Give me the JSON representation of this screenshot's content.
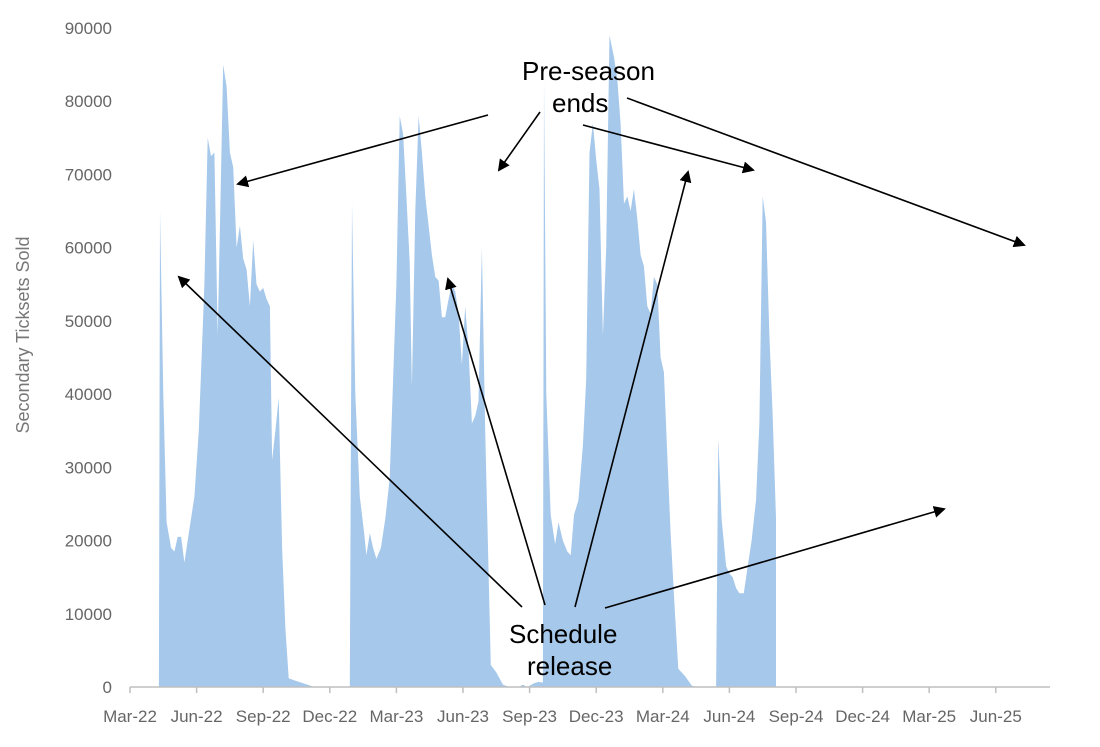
{
  "chart_data": {
    "type": "area",
    "title": "",
    "xlabel": "",
    "ylabel": "Secondary Ticksets Sold",
    "ylim": [
      0,
      90000
    ],
    "yticks": [
      0,
      10000,
      20000,
      30000,
      40000,
      50000,
      60000,
      70000,
      80000,
      90000
    ],
    "xlim": [
      0,
      40.2
    ],
    "xticks": [
      {
        "label": "Mar-22",
        "x": 0
      },
      {
        "label": "Jun-22",
        "x": 3
      },
      {
        "label": "Sep-22",
        "x": 6
      },
      {
        "label": "Dec-22",
        "x": 9
      },
      {
        "label": "Mar-23",
        "x": 12
      },
      {
        "label": "Jun-23",
        "x": 15
      },
      {
        "label": "Sep-23",
        "x": 18
      },
      {
        "label": "Dec-23",
        "x": 21
      },
      {
        "label": "Mar-24",
        "x": 24
      },
      {
        "label": "Jun-24",
        "x": 27
      },
      {
        "label": "Sep-24",
        "x": 30
      },
      {
        "label": "Dec-24",
        "x": 33
      },
      {
        "label": "Mar-25",
        "x": 36
      },
      {
        "label": "Jun-25",
        "x": 39
      }
    ],
    "series": [
      {
        "color": "#a6c8eb",
        "points": [
          [
            0,
            0
          ],
          [
            1.3,
            0
          ],
          [
            1.35,
            65000
          ],
          [
            1.5,
            40000
          ],
          [
            1.65,
            22500
          ],
          [
            1.85,
            19000
          ],
          [
            2.0,
            18500
          ],
          [
            2.15,
            20500
          ],
          [
            2.3,
            20500
          ],
          [
            2.45,
            17000
          ],
          [
            2.65,
            21000
          ],
          [
            2.9,
            26000
          ],
          [
            3.1,
            35000
          ],
          [
            3.35,
            55000
          ],
          [
            3.5,
            75000
          ],
          [
            3.65,
            72500
          ],
          [
            3.8,
            73000
          ],
          [
            3.95,
            48000
          ],
          [
            4.1,
            70000
          ],
          [
            4.2,
            85000
          ],
          [
            4.35,
            82000
          ],
          [
            4.5,
            73000
          ],
          [
            4.65,
            71000
          ],
          [
            4.8,
            60000
          ],
          [
            4.95,
            63000
          ],
          [
            5.1,
            58500
          ],
          [
            5.25,
            57000
          ],
          [
            5.4,
            52000
          ],
          [
            5.55,
            61000
          ],
          [
            5.7,
            55000
          ],
          [
            5.85,
            54000
          ],
          [
            6.0,
            54500
          ],
          [
            6.15,
            53000
          ],
          [
            6.3,
            52000
          ],
          [
            6.4,
            31000
          ],
          [
            6.55,
            35000
          ],
          [
            6.7,
            39500
          ],
          [
            6.85,
            19000
          ],
          [
            7.0,
            8000
          ],
          [
            7.15,
            1200
          ],
          [
            7.4,
            900
          ],
          [
            7.8,
            500
          ],
          [
            8.3,
            0
          ],
          [
            9.9,
            0
          ],
          [
            10.0,
            66000
          ],
          [
            10.15,
            40000
          ],
          [
            10.35,
            26000
          ],
          [
            10.55,
            21000
          ],
          [
            10.65,
            18000
          ],
          [
            10.8,
            21000
          ],
          [
            10.95,
            19000
          ],
          [
            11.1,
            17500
          ],
          [
            11.3,
            19000
          ],
          [
            11.5,
            23000
          ],
          [
            11.7,
            28500
          ],
          [
            11.85,
            42000
          ],
          [
            12.0,
            55000
          ],
          [
            12.15,
            78000
          ],
          [
            12.3,
            75500
          ],
          [
            12.45,
            67000
          ],
          [
            12.6,
            58000
          ],
          [
            12.7,
            41000
          ],
          [
            12.85,
            65000
          ],
          [
            13.0,
            78000
          ],
          [
            13.15,
            73000
          ],
          [
            13.3,
            67000
          ],
          [
            13.45,
            63000
          ],
          [
            13.6,
            59000
          ],
          [
            13.75,
            56000
          ],
          [
            13.9,
            55500
          ],
          [
            14.05,
            50500
          ],
          [
            14.2,
            50500
          ],
          [
            14.35,
            53000
          ],
          [
            14.5,
            55000
          ],
          [
            14.65,
            54000
          ],
          [
            14.8,
            51000
          ],
          [
            14.95,
            44000
          ],
          [
            15.1,
            52000
          ],
          [
            15.25,
            46000
          ],
          [
            15.4,
            36000
          ],
          [
            15.55,
            37000
          ],
          [
            15.7,
            39000
          ],
          [
            15.85,
            60000
          ],
          [
            16.0,
            35000
          ],
          [
            16.25,
            3000
          ],
          [
            16.5,
            2000
          ],
          [
            16.8,
            300
          ],
          [
            17.1,
            0
          ],
          [
            17.5,
            0
          ],
          [
            17.7,
            300
          ],
          [
            17.9,
            0
          ],
          [
            18.2,
            500
          ],
          [
            18.4,
            700
          ],
          [
            18.6,
            600
          ],
          [
            18.65,
            83000
          ],
          [
            18.75,
            40000
          ],
          [
            18.95,
            23500
          ],
          [
            19.15,
            19500
          ],
          [
            19.3,
            22500
          ],
          [
            19.5,
            20000
          ],
          [
            19.7,
            18500
          ],
          [
            19.85,
            18000
          ],
          [
            20.0,
            23500
          ],
          [
            20.2,
            25500
          ],
          [
            20.4,
            33000
          ],
          [
            20.55,
            42000
          ],
          [
            20.7,
            73000
          ],
          [
            20.85,
            77000
          ],
          [
            21.0,
            72000
          ],
          [
            21.15,
            68000
          ],
          [
            21.3,
            48000
          ],
          [
            21.45,
            60000
          ],
          [
            21.6,
            89000
          ],
          [
            21.8,
            86000
          ],
          [
            21.95,
            83000
          ],
          [
            22.1,
            77000
          ],
          [
            22.25,
            66000
          ],
          [
            22.4,
            67000
          ],
          [
            22.55,
            65000
          ],
          [
            22.7,
            68000
          ],
          [
            22.85,
            64000
          ],
          [
            23.0,
            59000
          ],
          [
            23.15,
            57500
          ],
          [
            23.3,
            52000
          ],
          [
            23.45,
            51000
          ],
          [
            23.6,
            56000
          ],
          [
            23.75,
            55000
          ],
          [
            23.9,
            45000
          ],
          [
            24.05,
            43000
          ],
          [
            24.2,
            32000
          ],
          [
            24.35,
            21000
          ],
          [
            24.55,
            10000
          ],
          [
            24.7,
            2500
          ],
          [
            25.0,
            1500
          ],
          [
            25.3,
            200
          ],
          [
            25.5,
            0
          ],
          [
            26.4,
            0
          ],
          [
            26.5,
            34000
          ],
          [
            26.65,
            23000
          ],
          [
            26.85,
            16500
          ],
          [
            27.0,
            15500
          ],
          [
            27.15,
            15000
          ],
          [
            27.3,
            13500
          ],
          [
            27.45,
            12800
          ],
          [
            27.65,
            12800
          ],
          [
            27.8,
            16000
          ],
          [
            28.0,
            20000
          ],
          [
            28.2,
            25500
          ],
          [
            28.35,
            36000
          ],
          [
            28.5,
            67000
          ],
          [
            28.65,
            63500
          ],
          [
            28.8,
            48000
          ],
          [
            28.95,
            37000
          ],
          [
            29.1,
            23000
          ],
          [
            29.1,
            0
          ]
        ]
      }
    ],
    "annotations": [
      {
        "text_lines": [
          "Pre-season",
          "ends"
        ]
      },
      {
        "text_lines": [
          "Schedule",
          "release"
        ]
      }
    ]
  }
}
